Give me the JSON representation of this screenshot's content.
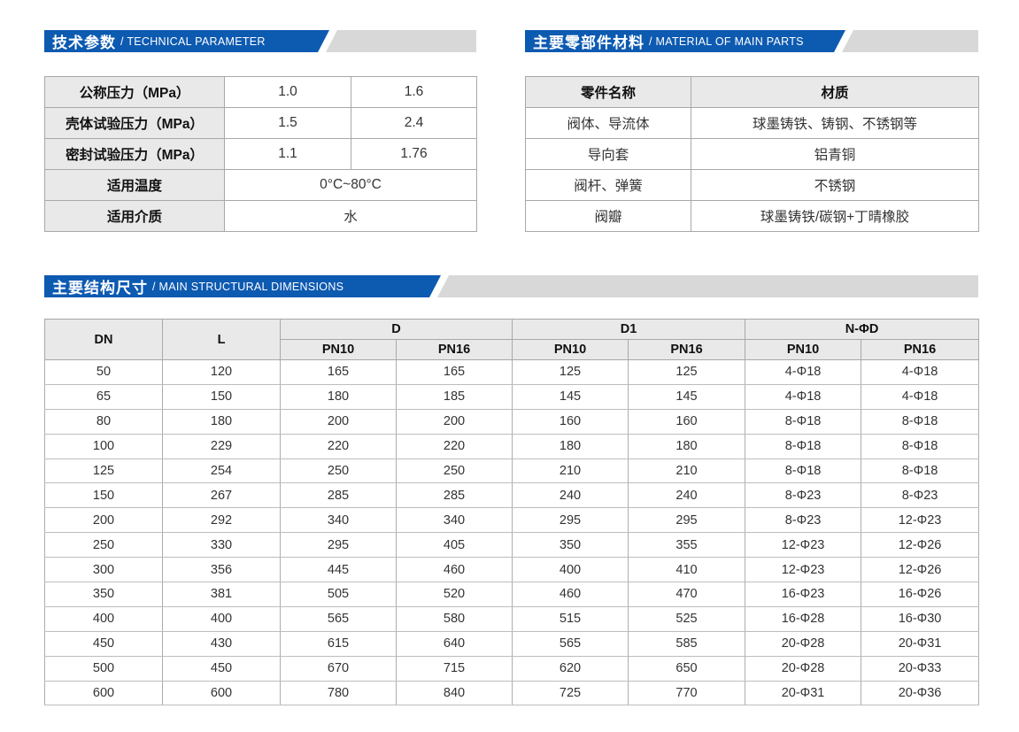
{
  "colors": {
    "banner_blue": "#0d5ab1",
    "banner_gray": "#d8d8d8",
    "header_cell_gray": "#e9e9e9"
  },
  "sections": {
    "technical": {
      "title_zh": "技术参数",
      "title_en": "/ TECHNICAL PARAMETER",
      "rows": [
        {
          "label": "公称压力（MPa）",
          "v1": "1.0",
          "v2": "1.6"
        },
        {
          "label": "壳体试验压力（MPa）",
          "v1": "1.5",
          "v2": "2.4"
        },
        {
          "label": "密封试验压力（MPa）",
          "v1": "1.1",
          "v2": "1.76"
        },
        {
          "label": "适用温度",
          "span": "0°C~80°C"
        },
        {
          "label": "适用介质",
          "span": "水"
        }
      ]
    },
    "materials": {
      "title_zh": "主要零部件材料",
      "title_en": "/ MATERIAL OF MAIN PARTS",
      "headers": [
        "零件名称",
        "材质"
      ],
      "rows": [
        [
          "阀体、导流体",
          "球墨铸铁、铸钢、不锈钢等"
        ],
        [
          "导向套",
          "铝青铜"
        ],
        [
          "阀杆、弹簧",
          "不锈钢"
        ],
        [
          "阀瓣",
          "球墨铸铁/碳钢+丁晴橡胶"
        ]
      ]
    },
    "dimensions": {
      "title_zh": "主要结构尺寸",
      "title_en": "/ MAIN STRUCTURAL DIMENSIONS",
      "col_groups": [
        "DN",
        "L",
        "D",
        "D1",
        "N-ΦD"
      ],
      "sub_headers": [
        "PN10",
        "PN16",
        "PN10",
        "PN16",
        "PN10",
        "PN16"
      ],
      "rows": [
        [
          "50",
          "120",
          "165",
          "165",
          "125",
          "125",
          "4-Φ18",
          "4-Φ18"
        ],
        [
          "65",
          "150",
          "180",
          "185",
          "145",
          "145",
          "4-Φ18",
          "4-Φ18"
        ],
        [
          "80",
          "180",
          "200",
          "200",
          "160",
          "160",
          "8-Φ18",
          "8-Φ18"
        ],
        [
          "100",
          "229",
          "220",
          "220",
          "180",
          "180",
          "8-Φ18",
          "8-Φ18"
        ],
        [
          "125",
          "254",
          "250",
          "250",
          "210",
          "210",
          "8-Φ18",
          "8-Φ18"
        ],
        [
          "150",
          "267",
          "285",
          "285",
          "240",
          "240",
          "8-Φ23",
          "8-Φ23"
        ],
        [
          "200",
          "292",
          "340",
          "340",
          "295",
          "295",
          "8-Φ23",
          "12-Φ23"
        ],
        [
          "250",
          "330",
          "295",
          "405",
          "350",
          "355",
          "12-Φ23",
          "12-Φ26"
        ],
        [
          "300",
          "356",
          "445",
          "460",
          "400",
          "410",
          "12-Φ23",
          "12-Φ26"
        ],
        [
          "350",
          "381",
          "505",
          "520",
          "460",
          "470",
          "16-Φ23",
          "16-Φ26"
        ],
        [
          "400",
          "400",
          "565",
          "580",
          "515",
          "525",
          "16-Φ28",
          "16-Φ30"
        ],
        [
          "450",
          "430",
          "615",
          "640",
          "565",
          "585",
          "20-Φ28",
          "20-Φ31"
        ],
        [
          "500",
          "450",
          "670",
          "715",
          "620",
          "650",
          "20-Φ28",
          "20-Φ33"
        ],
        [
          "600",
          "600",
          "780",
          "840",
          "725",
          "770",
          "20-Φ31",
          "20-Φ36"
        ]
      ]
    }
  }
}
